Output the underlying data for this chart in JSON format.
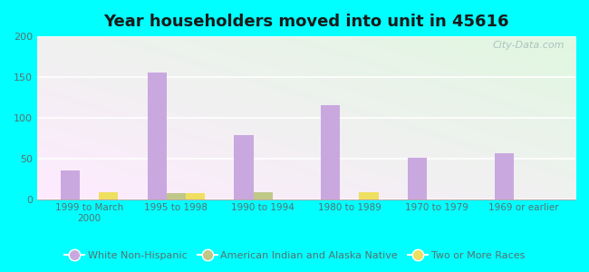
{
  "title": "Year householders moved into unit in 45616",
  "categories": [
    "1999 to March\n2000",
    "1995 to 1998",
    "1990 to 1994",
    "1980 to 1989",
    "1970 to 1979",
    "1969 or earlier"
  ],
  "white_non_hispanic": [
    35,
    156,
    79,
    115,
    51,
    56
  ],
  "american_indian": [
    0,
    7,
    8,
    0,
    0,
    0
  ],
  "two_or_more": [
    8,
    7,
    0,
    8,
    0,
    0
  ],
  "bar_width": 0.22,
  "ylim": [
    0,
    200
  ],
  "yticks": [
    0,
    50,
    100,
    150,
    200
  ],
  "white_color": "#c9a8e0",
  "american_indian_color": "#c0c888",
  "two_or_more_color": "#eedf60",
  "bg_color": "#00ffff",
  "plot_bg_color": "#e0f0dc",
  "title_color": "#1a1a1a",
  "axis_color": "#5a7070",
  "legend_labels": [
    "White Non-Hispanic",
    "American Indian and Alaska Native",
    "Two or More Races"
  ],
  "watermark_text": "City-Data.com"
}
